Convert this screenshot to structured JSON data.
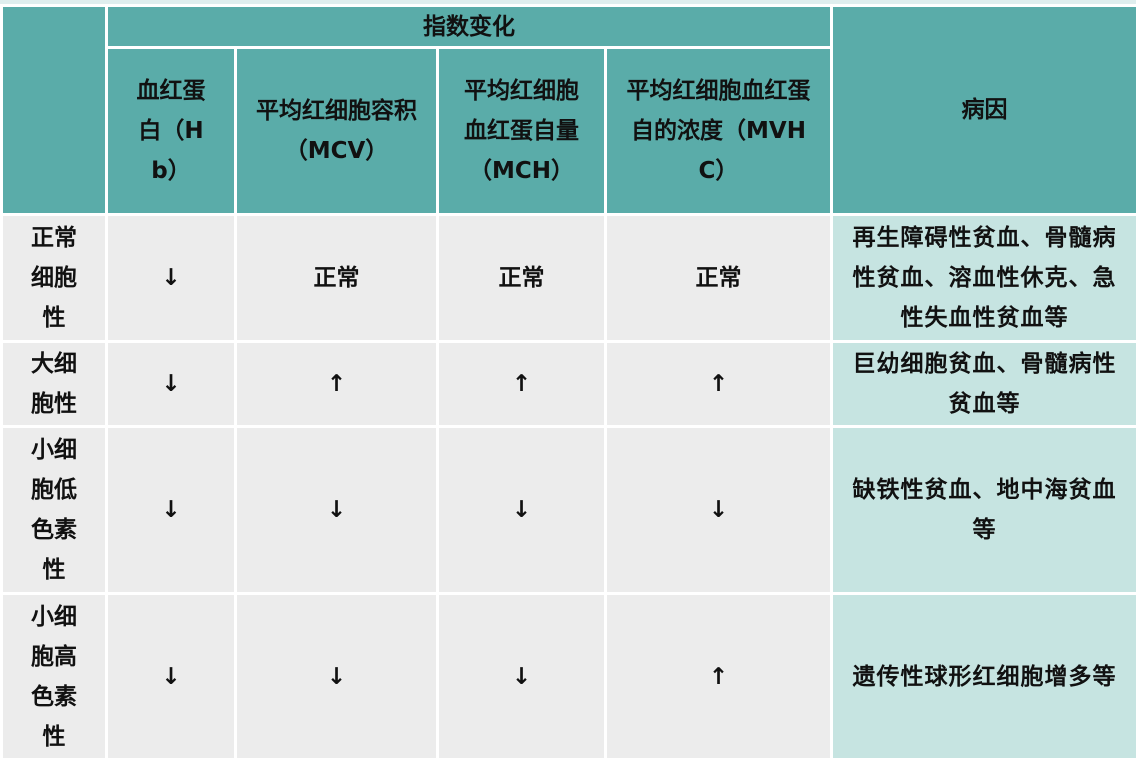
{
  "header": {
    "group_title": "指数变化",
    "columns": [
      "血红蛋白（Hb）",
      "平均红细胞容积（MCV）",
      "平均红细胞血红蛋自量（MCH）",
      "平均红细胞血红蛋自的浓度（MVHC）"
    ],
    "cause": "病因"
  },
  "colors": {
    "header": "#5aaca9",
    "body": "#ececec",
    "cause": "#c6e4e1"
  },
  "rows": [
    {
      "type": "正常细胞性",
      "hb": "↓",
      "mcv": "正常",
      "mch": "正常",
      "mvhc": "正常",
      "cause": "再生障碍性贫血、骨髓病性贫血、溶血性休克、急性失血性贫血等"
    },
    {
      "type": "大细胞性",
      "hb": "↓",
      "mcv": "↑",
      "mch": "↑",
      "mvhc": "↑",
      "cause": "巨幼细胞贫血、骨髓病性贫血等"
    },
    {
      "type": "小细胞低色素性",
      "hb": "↓",
      "mcv": "↓",
      "mch": "↓",
      "mvhc": "↓",
      "cause": "缺铁性贫血、地中海贫血等"
    },
    {
      "type": "小细胞高色素性",
      "hb": "↓",
      "mcv": "↓",
      "mch": "↓",
      "mvhc": "↑",
      "cause": "遗传性球形红细胞增多等"
    }
  ]
}
